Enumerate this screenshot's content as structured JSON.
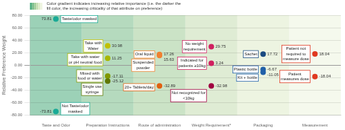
{
  "chart_data": {
    "type": "scatter",
    "categories": [
      "Taste and Odor",
      "Preparation Instructions",
      "Route of administration",
      "Weight Requirement*",
      "Packaging",
      "Measurement"
    ],
    "colors": [
      "#4aab7c",
      "#78bc88",
      "#a0cc98",
      "#c5ddb0",
      "#deebc8",
      "#edf4df"
    ],
    "annotations": [
      "Color gradient indicates increasing relative importance (i.e. the darker the\nfill color, the increasing criticality of that attribute on preference)"
    ],
    "ylabel": "Relative Preference Weight",
    "ylim": [
      -80,
      80
    ],
    "yticks": [
      {
        "value": -80,
        "label": "-80.00"
      },
      {
        "value": -60,
        "label": "-60.00"
      },
      {
        "value": -40,
        "label": "-40.00"
      },
      {
        "value": -20,
        "label": "-20.00"
      },
      {
        "value": 0,
        "label": "0.00"
      },
      {
        "value": 20,
        "label": "20.00"
      },
      {
        "value": 40,
        "label": "40.00"
      },
      {
        "value": 60,
        "label": "60.00"
      },
      {
        "value": 80,
        "label": "80.00"
      }
    ],
    "grid": true,
    "data_labels": true,
    "points": [
      {
        "category": "Taste and Odor",
        "value": 73.81,
        "label": "Taste/odor masked",
        "color": "#1aaa96"
      },
      {
        "category": "Taste and Odor",
        "value": -73.81,
        "label": "Not Taste/odor\nmasked",
        "color": "#1aaa96"
      },
      {
        "category": "Preparation Instructions",
        "value": 30.98,
        "label": "Take with\nWater",
        "color": "#c0c000"
      },
      {
        "category": "Preparation Instructions",
        "value": 11.25,
        "label": "Take with water\nor pH neutral food",
        "color": "#a8b800"
      },
      {
        "category": "Preparation Instructions",
        "value": -17.11,
        "label": "Mixed with\nfood or water",
        "color": "#809800"
      },
      {
        "category": "Preparation Instructions",
        "value": -25.12,
        "label": "Single use\nsyringe",
        "color": "#607800"
      },
      {
        "category": "Route of administration",
        "value": 17.26,
        "label": "Oral liquid",
        "color": "#f08030"
      },
      {
        "category": "Route of administration",
        "value": 15.63,
        "label": "Suspended\npowder",
        "color": "#f08030"
      },
      {
        "category": "Route of administration",
        "value": -32.89,
        "label": "20+ Tablets/day",
        "color": "#e06010"
      },
      {
        "category": "Weight Requirement*",
        "value": 29.75,
        "label": "No weight\nrequirement",
        "color": "#d02060"
      },
      {
        "category": "Weight Requirement*",
        "value": 3.24,
        "label": "Indicated for\npatients ≥10kg",
        "color": "#d02060"
      },
      {
        "category": "Weight Requirement*",
        "value": -32.98,
        "label": "Not recognized for\n<10kg",
        "color": "#a00040"
      },
      {
        "category": "Packaging",
        "value": 17.72,
        "label": "Sachet",
        "color": "#1a4a80"
      },
      {
        "category": "Packaging",
        "value": -6.67,
        "label": "Plastic bottle",
        "color": "#2060a8"
      },
      {
        "category": "Packaging",
        "value": -11.05,
        "label": "Kit + bottle",
        "color": "#2060a8"
      },
      {
        "category": "Measurement",
        "value": 18.04,
        "label": "Patient not\nrequired to\nmeasure dose",
        "color": "#e03820"
      },
      {
        "category": "Measurement",
        "value": -18.04,
        "label": "Patient\nmeasures dose",
        "color": "#e03820"
      }
    ]
  }
}
